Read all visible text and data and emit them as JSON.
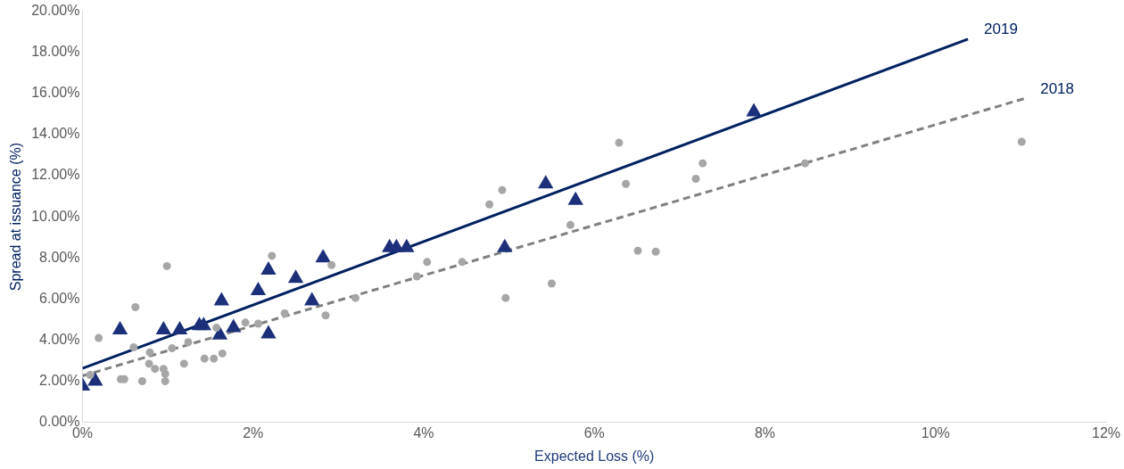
{
  "chart_data": {
    "type": "scatter",
    "xlabel": "Expected Loss (%)",
    "ylabel": "Spread at issuance (%)",
    "xlim": [
      0,
      12
    ],
    "xticks": [
      {
        "value": 0,
        "label": "0%"
      },
      {
        "value": 2,
        "label": "2%"
      },
      {
        "value": 4,
        "label": "4%"
      },
      {
        "value": 6,
        "label": "6%"
      },
      {
        "value": 8,
        "label": "8%"
      },
      {
        "value": 10,
        "label": "10%"
      },
      {
        "value": 12,
        "label": "12%"
      }
    ],
    "ylim": [
      0,
      20
    ],
    "yticks": [
      {
        "value": 0,
        "label": "0.00%"
      },
      {
        "value": 2,
        "label": "2.00%"
      },
      {
        "value": 4,
        "label": "4.00%"
      },
      {
        "value": 6,
        "label": "6.00%"
      },
      {
        "value": 8,
        "label": "8.00%"
      },
      {
        "value": 10,
        "label": "10.00%"
      },
      {
        "value": 12,
        "label": "12.00%"
      },
      {
        "value": 14,
        "label": "14.00%"
      },
      {
        "value": 16,
        "label": "16.00%"
      },
      {
        "value": 18,
        "label": "18.00%"
      },
      {
        "value": 20,
        "label": "20.00%"
      }
    ],
    "grid": false,
    "legend": false,
    "series": [
      {
        "marker": "circle",
        "color": "#a6a6a6",
        "x": [
          0.19,
          0.99,
          0.62,
          2.22,
          2.92,
          2.85,
          2.37,
          1.91,
          2.06,
          1.57,
          1.24,
          0.6,
          0.79,
          1.05,
          1.64,
          1.54,
          1.43,
          1.19,
          0.78,
          0.85,
          0.95,
          0.97,
          0.45,
          0.49,
          0.7,
          0.97,
          0.09,
          4.04,
          4.45,
          3.92,
          3.2,
          4.96,
          5.5,
          5.72,
          4.92,
          4.77,
          6.29,
          6.37,
          7.19,
          7.27,
          6.51,
          6.72,
          8.47,
          11.01
        ],
        "values": [
          4.1,
          7.6,
          5.6,
          8.1,
          7.65,
          5.2,
          5.3,
          4.85,
          4.8,
          4.6,
          3.9,
          3.65,
          3.4,
          3.6,
          3.35,
          3.1,
          3.1,
          2.85,
          2.85,
          2.6,
          2.6,
          2.35,
          2.1,
          2.1,
          2.0,
          2.0,
          2.3,
          7.8,
          7.8,
          7.1,
          6.05,
          6.05,
          6.75,
          9.6,
          11.3,
          10.6,
          13.6,
          11.6,
          11.85,
          12.6,
          8.35,
          8.3,
          12.6,
          13.65
        ]
      },
      {
        "marker": "triangle",
        "color": "#1b2f7a",
        "x": [
          0,
          0.15,
          0.44,
          0.95,
          1.14,
          1.37,
          1.42,
          1.61,
          1.63,
          1.77,
          2.06,
          2.18,
          2.18,
          2.5,
          2.69,
          2.82,
          3.6,
          3.68,
          3.8,
          4.95,
          5.43,
          5.78,
          7.87
        ],
        "values": [
          1.76,
          2.0,
          4.5,
          4.5,
          4.5,
          4.7,
          4.7,
          4.25,
          5.9,
          4.6,
          6.4,
          7.4,
          4.3,
          7.0,
          5.9,
          8.0,
          8.5,
          8.5,
          8.5,
          8.5,
          11.6,
          10.8,
          15.1
        ]
      },
      {
        "type": "line",
        "name": "2018",
        "marker": "none",
        "line_style": "dashed",
        "color": "#808080",
        "x": [
          0,
          11.04
        ],
        "values": [
          2.26,
          15.75
        ]
      },
      {
        "type": "line",
        "name": "2019",
        "marker": "none",
        "line_style": "solid",
        "color": "#002060",
        "x": [
          0,
          10.38
        ],
        "values": [
          2.62,
          18.64
        ]
      }
    ]
  }
}
